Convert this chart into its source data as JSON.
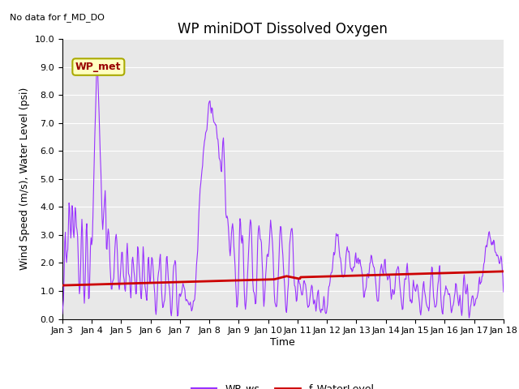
{
  "title": "WP miniDOT Dissolved Oxygen",
  "no_data_text": "No data for f_MD_DO",
  "xlabel": "Time",
  "ylabel": "Wind Speed (m/s), Water Level (psi)",
  "ylim": [
    0.0,
    10.0
  ],
  "yticks": [
    0.0,
    1.0,
    2.0,
    3.0,
    4.0,
    5.0,
    6.0,
    7.0,
    8.0,
    9.0,
    10.0
  ],
  "ytick_labels": [
    "0.0",
    "1.0",
    "2.0",
    "3.0",
    "4.0",
    "5.0",
    "6.0",
    "7.0",
    "8.0",
    "9.0",
    "10.0"
  ],
  "xtick_labels": [
    "Jan 3",
    "Jan 4",
    "Jan 5",
    "Jan 6",
    "Jan 7",
    "Jan 8",
    "Jan 9",
    "Jan 10",
    "Jan 11",
    "Jan 12",
    "Jan 13",
    "Jan 14",
    "Jan 15",
    "Jan 16",
    "Jan 17",
    "Jan 18"
  ],
  "ws_color": "#9933FF",
  "wl_color": "#CC0000",
  "legend_label_ws": "WP_ws",
  "legend_label_wl": "f_WaterLevel",
  "wp_met_label": "WP_met",
  "wp_met_bg": "#FFFFC0",
  "wp_met_edge": "#AAAA00",
  "wp_met_text_color": "#990000",
  "background_color": "#E8E8E8",
  "title_fontsize": 12,
  "axis_fontsize": 9,
  "tick_fontsize": 8,
  "legend_fontsize": 9
}
